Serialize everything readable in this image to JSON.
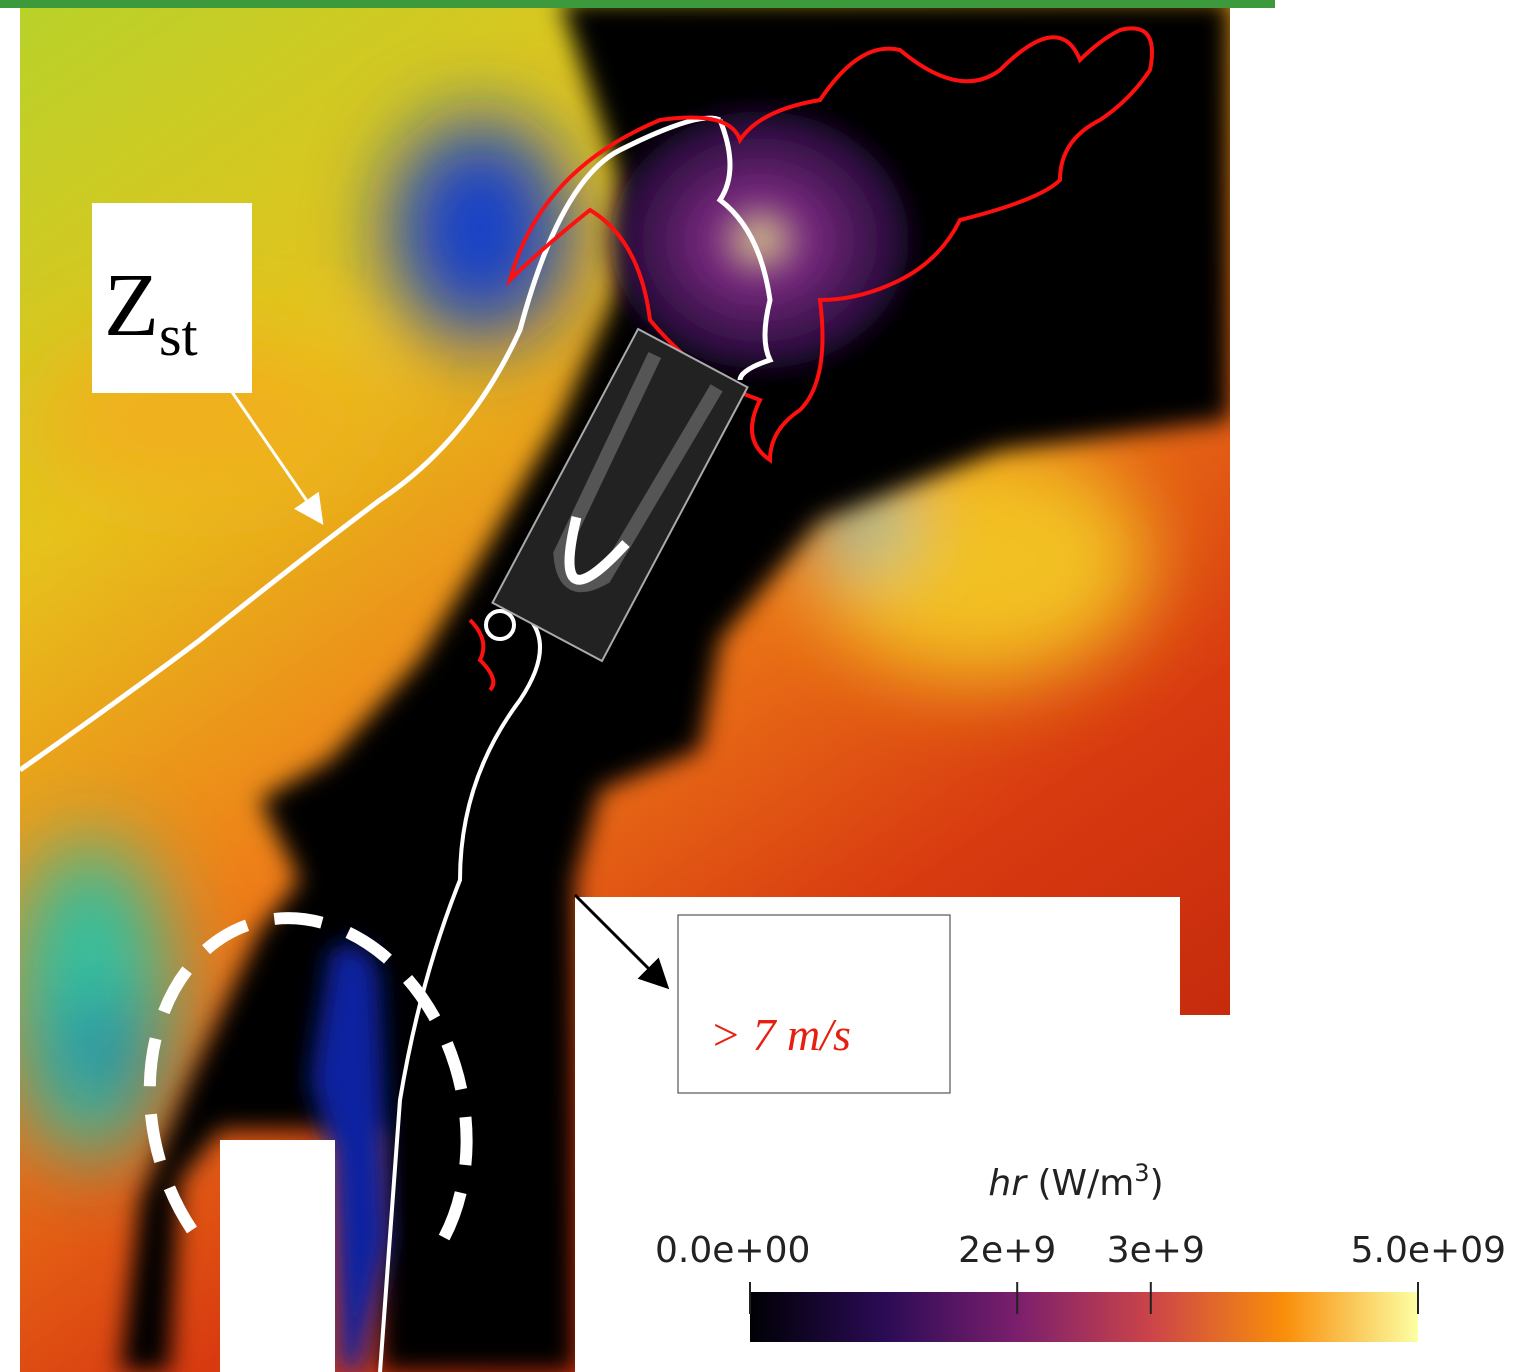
{
  "annotations": {
    "zst_label": {
      "main": "Z",
      "sub": "st"
    },
    "velocity_label": "> 7 m/s"
  },
  "colorbar": {
    "variable": "hr",
    "unit": "(W/m",
    "exponent": "3",
    "close": ")",
    "lim": [
      0,
      5000000000
    ],
    "ticks": [
      {
        "value": 0,
        "label": "0.0e+00"
      },
      {
        "value": 2000000000,
        "label": "2e+9"
      },
      {
        "value": 3000000000,
        "label": "3e+9"
      },
      {
        "value": 5000000000,
        "label": "5.0e+09"
      }
    ]
  }
}
